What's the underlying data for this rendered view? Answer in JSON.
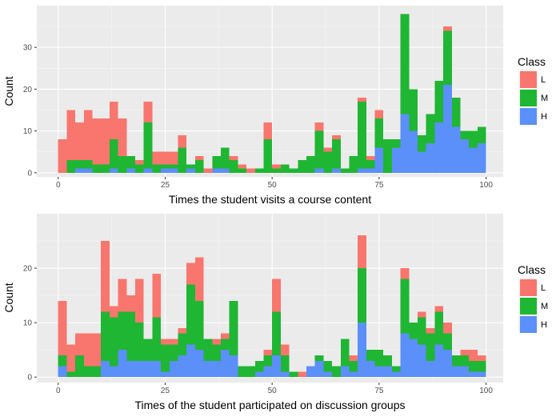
{
  "chart_data": [
    {
      "type": "bar",
      "subtype": "stacked-histogram",
      "xlabel": "Times the student visits a course content",
      "ylabel": "Count",
      "xlim": [
        -5,
        104
      ],
      "ylim": [
        -1,
        40
      ],
      "xticks": [
        0,
        25,
        50,
        75,
        100
      ],
      "yticks": [
        0,
        10,
        20,
        30
      ],
      "grid": true,
      "legend_position": "right",
      "legend": {
        "title": "Class",
        "entries": [
          "L",
          "M",
          "H"
        ]
      },
      "colors": {
        "L": "#f8766d",
        "M": "#1fb633",
        "H": "#5b8ff9"
      },
      "bin_width": 2,
      "x": [
        1,
        3,
        5,
        7,
        9,
        11,
        13,
        15,
        17,
        19,
        21,
        23,
        25,
        27,
        29,
        31,
        33,
        35,
        37,
        39,
        41,
        43,
        45,
        47,
        49,
        51,
        53,
        55,
        57,
        59,
        61,
        63,
        65,
        67,
        69,
        71,
        73,
        75,
        77,
        79,
        81,
        83,
        85,
        87,
        89,
        91,
        93,
        95,
        97,
        99
      ],
      "series": [
        {
          "name": "H",
          "values": [
            0,
            0,
            1,
            1,
            0,
            0,
            1,
            0,
            1,
            0,
            1,
            0,
            1,
            1,
            0,
            1,
            0,
            0,
            1,
            1,
            0,
            0,
            0,
            0,
            0,
            0,
            0,
            0,
            0,
            0,
            1,
            0,
            1,
            0,
            0,
            1,
            1,
            6,
            0,
            6,
            14,
            10,
            5,
            7,
            12,
            21,
            11,
            8,
            6,
            7
          ]
        },
        {
          "name": "M",
          "values": [
            0,
            3,
            2,
            2,
            2,
            2,
            7,
            4,
            3,
            2,
            11,
            2,
            1,
            1,
            6,
            1,
            3,
            0,
            3,
            5,
            3,
            1,
            0,
            1,
            8,
            1,
            2,
            1,
            3,
            4,
            9,
            5,
            7,
            1,
            4,
            16,
            2,
            7,
            8,
            2,
            24,
            10,
            4,
            7,
            10,
            13,
            7,
            2,
            4,
            4
          ]
        },
        {
          "name": "L",
          "values": [
            8,
            12,
            9,
            12,
            11,
            11,
            9,
            9,
            0,
            1,
            5,
            3,
            3,
            3,
            3,
            0,
            1,
            1,
            0,
            0,
            1,
            1,
            1,
            0,
            4,
            1,
            0,
            0,
            0,
            0,
            2,
            1,
            1,
            0,
            0,
            1,
            1,
            2,
            0,
            0,
            0,
            0,
            0,
            0,
            0,
            1,
            0,
            0,
            0,
            0
          ]
        }
      ]
    },
    {
      "type": "bar",
      "subtype": "stacked-histogram",
      "xlabel": "Times of the student participated on discussion groups",
      "ylabel": "Count",
      "xlim": [
        -5,
        104
      ],
      "ylim": [
        -1,
        30
      ],
      "xticks": [
        0,
        25,
        50,
        75,
        100
      ],
      "yticks": [
        0,
        10,
        20
      ],
      "grid": true,
      "legend_position": "right",
      "legend": {
        "title": "Class",
        "entries": [
          "L",
          "M",
          "H"
        ]
      },
      "colors": {
        "L": "#f8766d",
        "M": "#1fb633",
        "H": "#5b8ff9"
      },
      "bin_width": 2,
      "x": [
        1,
        3,
        5,
        7,
        9,
        11,
        13,
        15,
        17,
        19,
        21,
        23,
        25,
        27,
        29,
        31,
        33,
        35,
        37,
        39,
        41,
        43,
        45,
        47,
        49,
        51,
        53,
        55,
        57,
        59,
        61,
        63,
        65,
        67,
        69,
        71,
        73,
        75,
        77,
        79,
        81,
        83,
        85,
        87,
        89,
        91,
        93,
        95,
        97,
        99
      ],
      "series": [
        {
          "name": "H",
          "values": [
            2,
            0,
            0,
            0,
            0,
            3,
            2,
            5,
            3,
            3,
            3,
            3,
            1,
            3,
            4,
            6,
            5,
            3,
            3,
            5,
            4,
            0,
            0,
            1,
            2,
            4,
            1,
            0,
            0,
            2,
            3,
            1,
            0,
            2,
            1,
            10,
            3,
            2,
            2,
            1,
            8,
            7,
            6,
            3,
            6,
            5,
            2,
            2,
            1,
            1
          ]
        },
        {
          "name": "M",
          "values": [
            2,
            1,
            4,
            2,
            2,
            9,
            9,
            7,
            9,
            7,
            4,
            8,
            5,
            3,
            4,
            11,
            9,
            4,
            3,
            2,
            10,
            2,
            2,
            2,
            2,
            8,
            3,
            1,
            0,
            0,
            1,
            2,
            2,
            5,
            2,
            10,
            2,
            3,
            2,
            1,
            10,
            3,
            5,
            5,
            6,
            3,
            2,
            2,
            2,
            2
          ]
        },
        {
          "name": "L",
          "values": [
            10,
            5,
            4,
            6,
            6,
            13,
            2,
            6,
            3,
            8,
            0,
            8,
            1,
            1,
            1,
            4,
            8,
            0,
            1,
            1,
            0,
            0,
            0,
            0,
            1,
            6,
            2,
            0,
            1,
            0,
            0,
            0,
            0,
            0,
            1,
            6,
            0,
            0,
            0,
            0,
            2,
            0,
            1,
            1,
            1,
            2,
            0,
            1,
            2,
            1
          ]
        }
      ]
    }
  ]
}
